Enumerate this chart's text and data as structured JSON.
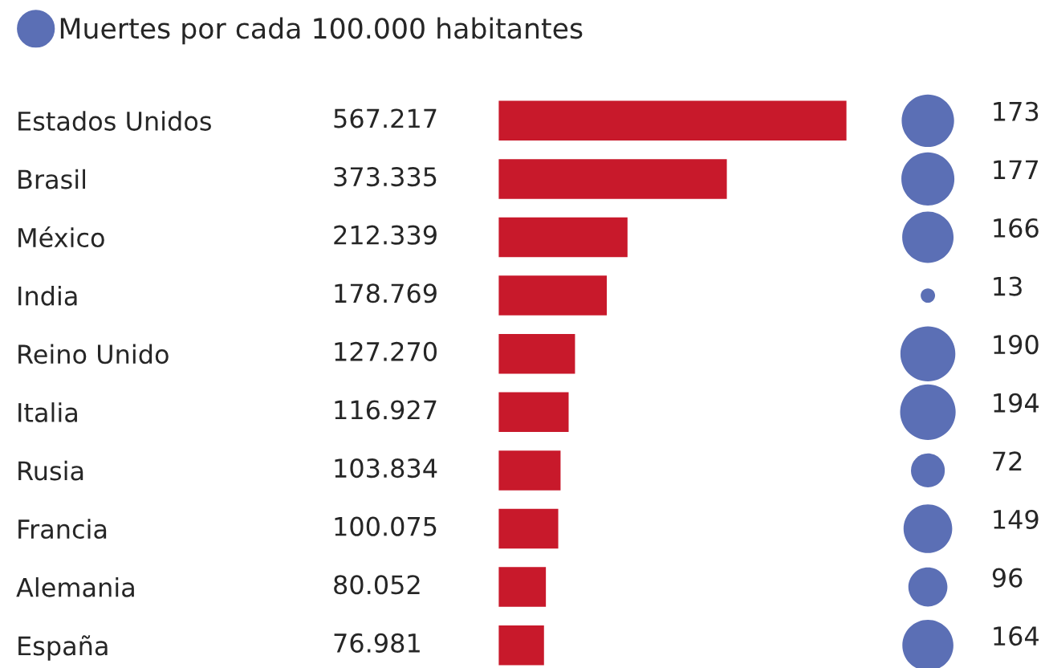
{
  "chart_data": [
    {
      "type": "bar",
      "orientation": "horizontal",
      "categories": [
        "Estados Unidos",
        "Brasil",
        "México",
        "India",
        "Reino Unido",
        "Italia",
        "Rusia",
        "Francia",
        "Alemania",
        "España"
      ],
      "values": [
        567217,
        373335,
        212339,
        178769,
        127270,
        116927,
        103834,
        100075,
        80052,
        76981
      ],
      "value_labels": [
        "567.217",
        "373.335",
        "212.339",
        "178.769",
        "127.270",
        "116.927",
        "103.834",
        "100.075",
        "80.052",
        "76.981"
      ],
      "color": "#c8192b"
    },
    {
      "type": "other",
      "legend": "top",
      "data_labels": true,
      "series": [
        {
          "name": "Muertes por cada 100.000 habitantes",
          "color": "#5b6fb5",
          "values": [
            173,
            177,
            166,
            13,
            190,
            194,
            72,
            149,
            96,
            164
          ]
        }
      ]
    }
  ]
}
